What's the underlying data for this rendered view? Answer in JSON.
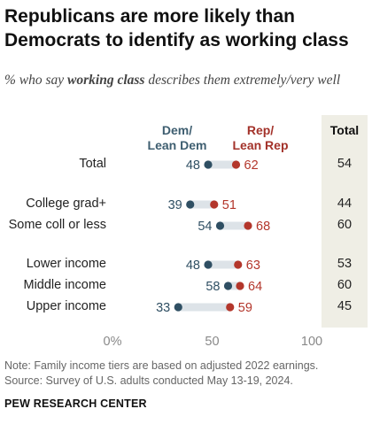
{
  "title": "Republicans are more likely than Democrats to identify as working class",
  "subtitle_pre": "% who say ",
  "subtitle_em": "working class",
  "subtitle_post": " describes them extremely/very well",
  "legend": {
    "dem": [
      "Dem/",
      "Lean Dem"
    ],
    "rep": [
      "Rep/",
      "Lean Rep"
    ],
    "total": "Total"
  },
  "colors": {
    "dem": "#2f4f63",
    "rep": "#b3362b",
    "connector": "#dde3e8",
    "total_bg": "#efeee5"
  },
  "chart_data": {
    "type": "dot",
    "x_ticks": [
      "0%",
      "50",
      "100"
    ],
    "xlim": [
      0,
      100
    ],
    "rows": [
      {
        "label": "Total",
        "dem": 48,
        "rep": 62,
        "total": 54
      },
      {
        "label": "College grad+",
        "dem": 39,
        "rep": 51,
        "total": 44
      },
      {
        "label": "Some coll or less",
        "dem": 54,
        "rep": 68,
        "total": 60
      },
      {
        "label": "Lower income",
        "dem": 48,
        "rep": 63,
        "total": 53
      },
      {
        "label": "Middle income",
        "dem": 58,
        "rep": 64,
        "total": 60
      },
      {
        "label": "Upper income",
        "dem": 33,
        "rep": 59,
        "total": 45
      }
    ]
  },
  "note": "Note: Family income tiers are based on adjusted 2022 earnings.",
  "source": "Source: Survey of U.S. adults conducted May 13-19, 2024.",
  "brand": "PEW RESEARCH CENTER"
}
